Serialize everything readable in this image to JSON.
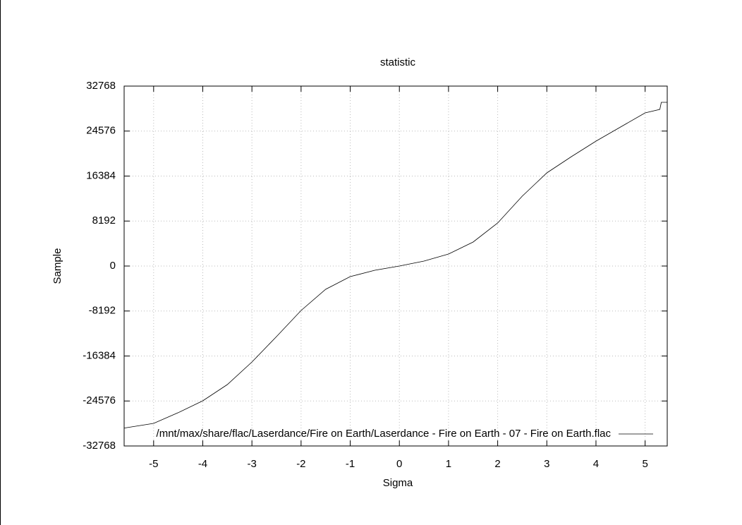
{
  "chart_data": {
    "type": "line",
    "title": "statistic",
    "x_label": "Sigma",
    "y_label": "Sample",
    "x": [
      -5.6,
      -5.0,
      -4.5,
      -4.0,
      -3.5,
      -3.0,
      -2.5,
      -2.0,
      -1.5,
      -1.0,
      -0.5,
      0,
      0.5,
      1.0,
      1.5,
      2.0,
      2.5,
      3.0,
      3.5,
      4.0,
      4.5,
      5.0,
      5.3,
      5.33,
      5.45
    ],
    "series": [
      {
        "name": "/mnt/max/share/flac/Laserdance/Fire on Earth/Laserdance - Fire on Earth - 07 - Fire on Earth.flac",
        "color": "#000000",
        "values": [
          -29500,
          -28650,
          -26700,
          -24540,
          -21590,
          -17470,
          -12850,
          -8100,
          -4240,
          -1930,
          -770,
          0,
          900,
          2180,
          4370,
          7840,
          12720,
          16960,
          19920,
          22750,
          25310,
          27880,
          28530,
          29810,
          29810
        ]
      }
    ],
    "xlim": [
      -5.6,
      5.45
    ],
    "ylim": [
      -32768,
      32768
    ],
    "xticks": [
      -5,
      -4,
      -3,
      -2,
      -1,
      0,
      1,
      2,
      3,
      4,
      5
    ],
    "yticks": [
      -32768,
      -24576,
      -16384,
      -8192,
      0,
      8192,
      16384,
      24576,
      32768
    ],
    "grid": true,
    "legend": "bottom-right"
  }
}
